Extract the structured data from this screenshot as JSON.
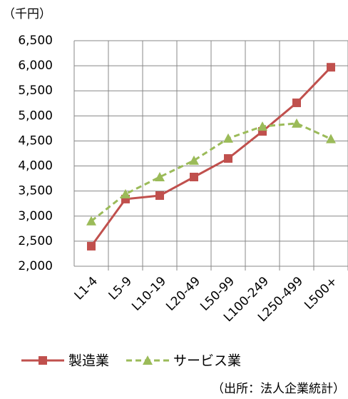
{
  "chart_data": {
    "type": "line",
    "unit_label": "（千円）",
    "source": "（出所：法人企業統計）",
    "categories": [
      "L1-4",
      "L5-9",
      "L10-19",
      "L20-49",
      "L50-99",
      "L100-249",
      "L250-499",
      "L500+"
    ],
    "series": [
      {
        "name": "製造業",
        "color": "#c0504d",
        "dashed": false,
        "marker": "square",
        "values": [
          2400,
          3340,
          3410,
          3780,
          4150,
          4690,
          5260,
          5970
        ]
      },
      {
        "name": "サービス業",
        "color": "#9bbb59",
        "dashed": true,
        "marker": "triangle",
        "values": [
          2900,
          3440,
          3780,
          4110,
          4550,
          4790,
          4850,
          4540
        ]
      }
    ],
    "ylim": [
      2000,
      6500
    ],
    "yticks": [
      {
        "value": 2000,
        "label": "2,000"
      },
      {
        "value": 2500,
        "label": "2,500"
      },
      {
        "value": 3000,
        "label": "3,000"
      },
      {
        "value": 3500,
        "label": "3,500"
      },
      {
        "value": 4000,
        "label": "4,000"
      },
      {
        "value": 4500,
        "label": "4,500"
      },
      {
        "value": 5000,
        "label": "5,000"
      },
      {
        "value": 5500,
        "label": "5,500"
      },
      {
        "value": 6000,
        "label": "6,000"
      },
      {
        "value": 6500,
        "label": "6,500"
      }
    ],
    "grid": true
  }
}
